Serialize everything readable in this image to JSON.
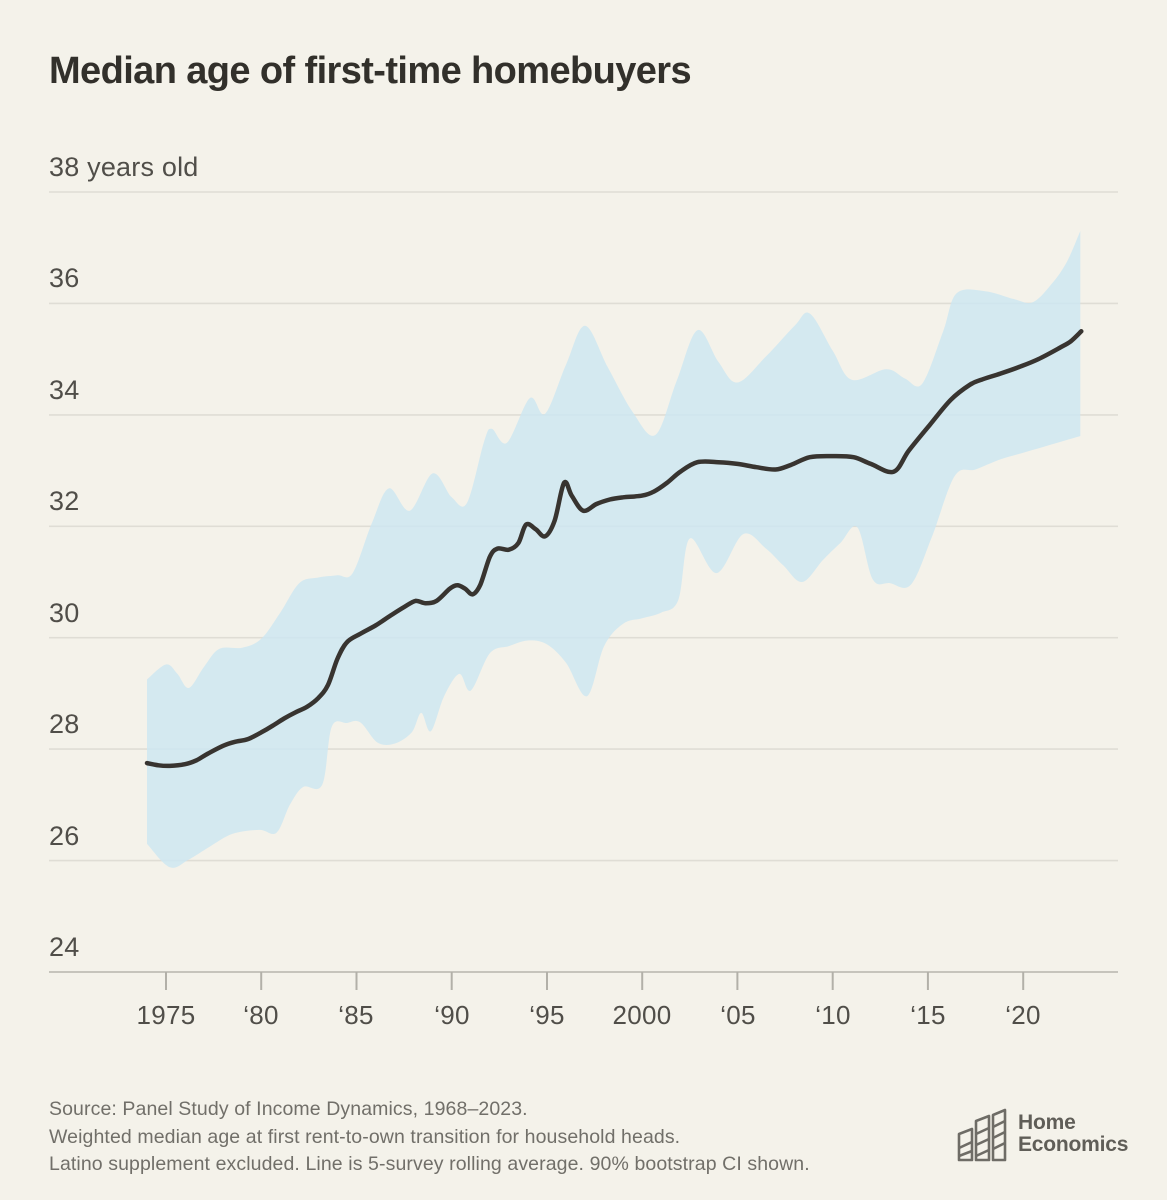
{
  "title": "Median age of first-time homebuyers",
  "y_axis": {
    "labels": [
      "38 years old",
      "36",
      "34",
      "32",
      "30",
      "28",
      "26",
      "24"
    ],
    "values": [
      38,
      36,
      34,
      32,
      30,
      28,
      26,
      24
    ]
  },
  "x_axis": {
    "labels": [
      "1975",
      "‘80",
      "‘85",
      "‘90",
      "‘95",
      "2000",
      "‘05",
      "‘10",
      "‘15",
      "‘20"
    ],
    "tick_years": [
      1975,
      1980,
      1985,
      1990,
      1995,
      2000,
      2005,
      2010,
      2015,
      2020
    ]
  },
  "footnote": {
    "line1": "Source: Panel Study of Income Dynamics, 1968–2023.",
    "line2": "Weighted median age at first rent-to-own transition for household heads.",
    "line3": "Latino supplement excluded. Line is 5-survey rolling average. 90% bootstrap CI shown."
  },
  "logo": {
    "word1": "Home",
    "word2": "Economics"
  },
  "colors": {
    "background": "#f4f2ea",
    "band": "#d4e9f1",
    "band_fill": "#cde6f1",
    "line": "#383430",
    "gridline": "#dfddd5",
    "axis_line": "#c6c4bc",
    "tick": "#b2b0a8",
    "title_text": "#32302b",
    "axis_text": "#504e49",
    "footnote_text": "#716f69",
    "logo_gray": "#6e6c66"
  },
  "chart_data": {
    "type": "line",
    "title": "Median age of first-time homebuyers",
    "ylabel": "years old",
    "ylim": [
      24,
      38
    ],
    "xlim": [
      1974,
      2023
    ],
    "grid": "horizontal",
    "legend": "none",
    "series": [
      {
        "name": "median_age",
        "style": "line",
        "points": [
          [
            1974.0,
            27.75
          ],
          [
            1974.6,
            27.71
          ],
          [
            1975.2,
            27.7
          ],
          [
            1976.0,
            27.73
          ],
          [
            1976.6,
            27.8
          ],
          [
            1977.2,
            27.92
          ],
          [
            1978.0,
            28.06
          ],
          [
            1978.6,
            28.13
          ],
          [
            1979.3,
            28.18
          ],
          [
            1980.0,
            28.3
          ],
          [
            1980.6,
            28.42
          ],
          [
            1981.2,
            28.55
          ],
          [
            1981.8,
            28.66
          ],
          [
            1982.4,
            28.76
          ],
          [
            1983.0,
            28.92
          ],
          [
            1983.5,
            29.15
          ],
          [
            1984.0,
            29.62
          ],
          [
            1984.5,
            29.92
          ],
          [
            1985.2,
            30.07
          ],
          [
            1986.0,
            30.22
          ],
          [
            1986.8,
            30.4
          ],
          [
            1987.5,
            30.55
          ],
          [
            1988.1,
            30.66
          ],
          [
            1988.6,
            30.62
          ],
          [
            1989.2,
            30.66
          ],
          [
            1989.9,
            30.88
          ],
          [
            1990.3,
            30.94
          ],
          [
            1990.7,
            30.88
          ],
          [
            1991.1,
            30.78
          ],
          [
            1991.5,
            30.95
          ],
          [
            1992.0,
            31.45
          ],
          [
            1992.4,
            31.6
          ],
          [
            1993.0,
            31.58
          ],
          [
            1993.5,
            31.7
          ],
          [
            1993.9,
            32.03
          ],
          [
            1994.4,
            31.95
          ],
          [
            1994.9,
            31.82
          ],
          [
            1995.4,
            32.1
          ],
          [
            1995.9,
            32.78
          ],
          [
            1996.3,
            32.55
          ],
          [
            1996.9,
            32.28
          ],
          [
            1997.6,
            32.4
          ],
          [
            1998.3,
            32.48
          ],
          [
            1999.0,
            32.52
          ],
          [
            2000.0,
            32.55
          ],
          [
            2000.6,
            32.62
          ],
          [
            2001.3,
            32.78
          ],
          [
            2002.0,
            32.98
          ],
          [
            2002.9,
            33.15
          ],
          [
            2004.0,
            33.15
          ],
          [
            2005.0,
            33.12
          ],
          [
            2006.0,
            33.06
          ],
          [
            2007.0,
            33.02
          ],
          [
            2007.8,
            33.1
          ],
          [
            2008.8,
            33.24
          ],
          [
            2010.0,
            33.26
          ],
          [
            2011.1,
            33.24
          ],
          [
            2012.0,
            33.12
          ],
          [
            2013.2,
            32.98
          ],
          [
            2014.0,
            33.36
          ],
          [
            2015.1,
            33.82
          ],
          [
            2016.2,
            34.27
          ],
          [
            2017.2,
            34.54
          ],
          [
            2017.8,
            34.63
          ],
          [
            2018.8,
            34.74
          ],
          [
            2019.8,
            34.86
          ],
          [
            2020.8,
            35.0
          ],
          [
            2021.9,
            35.2
          ],
          [
            2022.5,
            35.32
          ],
          [
            2023.05,
            35.5
          ]
        ]
      },
      {
        "name": "ci90_upper",
        "style": "band_upper",
        "points": [
          [
            1974.0,
            29.25
          ],
          [
            1975.0,
            29.52
          ],
          [
            1975.6,
            29.35
          ],
          [
            1976.2,
            29.1
          ],
          [
            1977.0,
            29.48
          ],
          [
            1977.8,
            29.8
          ],
          [
            1979.0,
            29.82
          ],
          [
            1980.0,
            29.98
          ],
          [
            1981.0,
            30.45
          ],
          [
            1982.0,
            30.98
          ],
          [
            1983.0,
            31.08
          ],
          [
            1984.0,
            31.12
          ],
          [
            1984.8,
            31.16
          ],
          [
            1985.8,
            32.05
          ],
          [
            1986.7,
            32.68
          ],
          [
            1987.8,
            32.28
          ],
          [
            1989.0,
            32.95
          ],
          [
            1990.0,
            32.52
          ],
          [
            1990.8,
            32.42
          ],
          [
            1991.7,
            33.52
          ],
          [
            1992.1,
            33.75
          ],
          [
            1992.9,
            33.5
          ],
          [
            1994.1,
            34.3
          ],
          [
            1994.9,
            34.02
          ],
          [
            1996.0,
            34.9
          ],
          [
            1997.0,
            35.6
          ],
          [
            1998.2,
            34.85
          ],
          [
            1999.5,
            34.05
          ],
          [
            2000.7,
            33.64
          ],
          [
            2001.8,
            34.6
          ],
          [
            2002.9,
            35.52
          ],
          [
            2004.0,
            34.95
          ],
          [
            2005.0,
            34.58
          ],
          [
            2006.5,
            35.05
          ],
          [
            2008.0,
            35.6
          ],
          [
            2008.8,
            35.82
          ],
          [
            2010.0,
            35.15
          ],
          [
            2011.0,
            34.63
          ],
          [
            2012.8,
            34.82
          ],
          [
            2013.8,
            34.65
          ],
          [
            2014.7,
            34.56
          ],
          [
            2015.8,
            35.5
          ],
          [
            2016.5,
            36.18
          ],
          [
            2018.0,
            36.22
          ],
          [
            2019.5,
            36.08
          ],
          [
            2020.5,
            36.02
          ],
          [
            2021.5,
            36.35
          ],
          [
            2022.3,
            36.75
          ],
          [
            2023.0,
            37.3
          ]
        ]
      },
      {
        "name": "ci90_lower",
        "style": "band_lower",
        "points": [
          [
            1974.0,
            26.3
          ],
          [
            1975.2,
            25.88
          ],
          [
            1976.2,
            26.02
          ],
          [
            1977.3,
            26.25
          ],
          [
            1978.5,
            26.48
          ],
          [
            1979.9,
            26.55
          ],
          [
            1980.8,
            26.5
          ],
          [
            1981.5,
            27.0
          ],
          [
            1982.2,
            27.32
          ],
          [
            1983.2,
            27.36
          ],
          [
            1983.7,
            28.4
          ],
          [
            1984.5,
            28.47
          ],
          [
            1985.2,
            28.48
          ],
          [
            1986.1,
            28.12
          ],
          [
            1987.0,
            28.1
          ],
          [
            1987.9,
            28.3
          ],
          [
            1988.4,
            28.65
          ],
          [
            1988.9,
            28.32
          ],
          [
            1989.6,
            28.95
          ],
          [
            1990.4,
            29.35
          ],
          [
            1991.0,
            29.05
          ],
          [
            1992.0,
            29.72
          ],
          [
            1993.0,
            29.85
          ],
          [
            1994.0,
            29.95
          ],
          [
            1995.0,
            29.88
          ],
          [
            1996.0,
            29.55
          ],
          [
            1997.1,
            28.95
          ],
          [
            1998.0,
            29.85
          ],
          [
            1999.0,
            30.25
          ],
          [
            2000.0,
            30.35
          ],
          [
            2001.0,
            30.45
          ],
          [
            2001.9,
            30.68
          ],
          [
            2002.5,
            31.78
          ],
          [
            2003.9,
            31.16
          ],
          [
            2005.3,
            31.86
          ],
          [
            2006.5,
            31.6
          ],
          [
            2007.4,
            31.3
          ],
          [
            2008.4,
            31.0
          ],
          [
            2009.5,
            31.4
          ],
          [
            2010.4,
            31.7
          ],
          [
            2011.3,
            31.98
          ],
          [
            2012.1,
            31.05
          ],
          [
            2013.0,
            30.98
          ],
          [
            2014.1,
            30.95
          ],
          [
            2015.2,
            31.8
          ],
          [
            2016.4,
            32.9
          ],
          [
            2017.5,
            33.02
          ],
          [
            2018.8,
            33.2
          ],
          [
            2020.0,
            33.32
          ],
          [
            2021.0,
            33.42
          ],
          [
            2022.0,
            33.52
          ],
          [
            2023.0,
            33.62
          ]
        ]
      }
    ]
  }
}
